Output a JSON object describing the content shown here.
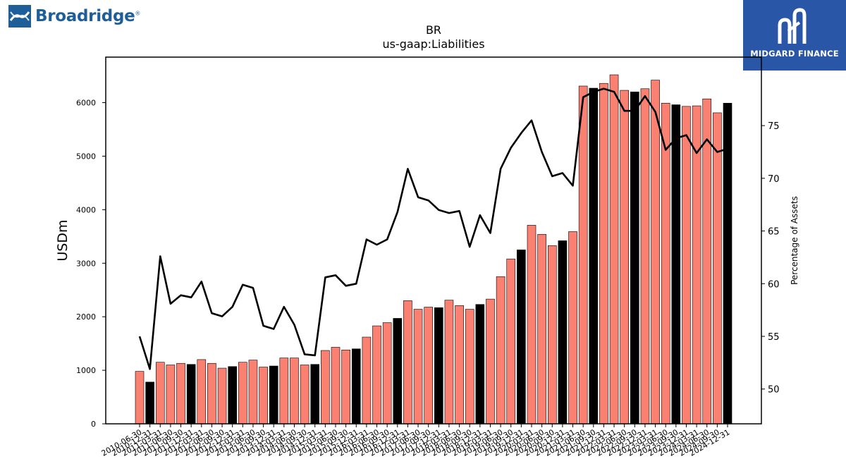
{
  "logos": {
    "left_text": "Broadridge",
    "left_trademark": "®",
    "right_text": "MIDGARD FINANCE"
  },
  "colors": {
    "bar_primary": "#fa8072",
    "bar_secondary": "#000000",
    "line": "#000000",
    "logo_left_blue": "#1f5f99",
    "logo_right_bg": "#2a56a8"
  },
  "chart_data": {
    "type": "bar",
    "title": "BR",
    "subtitle": "us-gaap:Liabilities",
    "ylabel": "USDm",
    "y2label": "Percentage of Assets",
    "ylim": [
      0,
      6850
    ],
    "y2lim": [
      46.7,
      81.5
    ],
    "yticks": [
      0,
      1000,
      2000,
      3000,
      4000,
      5000,
      6000
    ],
    "y2ticks": [
      50,
      55,
      60,
      65,
      70,
      75
    ],
    "grid": false,
    "legend": "none",
    "categories": [
      "2010-06-30",
      "2010-12-31",
      "2011-03-31",
      "2011-06-30",
      "2011-09-30",
      "2011-12-31",
      "2012-03-31",
      "2012-06-30",
      "2012-09-30",
      "2012-12-31",
      "2013-03-31",
      "2013-06-30",
      "2013-09-30",
      "2013-12-31",
      "2014-03-31",
      "2014-06-30",
      "2014-09-30",
      "2014-12-31",
      "2015-03-31",
      "2015-06-30",
      "2015-09-30",
      "2015-12-31",
      "2016-03-31",
      "2016-06-30",
      "2016-09-30",
      "2016-12-31",
      "2017-03-31",
      "2017-06-30",
      "2017-09-30",
      "2017-12-31",
      "2018-03-31",
      "2018-06-30",
      "2018-09-30",
      "2018-12-31",
      "2019-03-31",
      "2019-06-30",
      "2019-09-30",
      "2019-12-31",
      "2020-03-31",
      "2020-06-30",
      "2020-09-30",
      "2020-12-31",
      "2021-03-31",
      "2021-06-30",
      "2021-09-30",
      "2021-12-31",
      "2022-03-31",
      "2022-06-30",
      "2022-09-30",
      "2022-12-31",
      "2023-03-31",
      "2023-06-30",
      "2023-09-30",
      "2023-12-31",
      "2024-03-31",
      "2024-06-30",
      "2024-09-30",
      "2024-12-31"
    ],
    "visible_tick_labels": [
      "2010-06-30",
      "2010-12-31",
      "2011-03-31",
      "2011-06-30",
      "2011-09-30",
      "2011-12-31",
      "2012-03-31",
      "2012-06-30",
      "2012-09-30",
      "2012-12-31",
      "2013-03-31",
      "2013-06-30",
      "2013-09-30",
      "2013-12-31",
      "2014-03-31",
      "2014-06-30",
      "2014-09-30",
      "2014-12-31",
      "2015-03-31",
      "2015-06-30",
      "2015-09-30",
      "2015-12-31",
      "2016-03-31",
      "2016-06-30",
      "2016-09-30",
      "2016-12-31",
      "2017-03-31",
      "2017-06-30",
      "2017-09-30",
      "2017-12-31",
      "2018-03-31",
      "2018-06-30",
      "2018-09-30",
      "2018-12-31",
      "2019-03-31",
      "2019-06-30",
      "2019-09-30",
      "2019-12-31",
      "2020-03-31",
      "2020-06-30",
      "2020-09-30",
      "2020-12-31",
      "2021-03-31",
      "2021-06-30",
      "2021-09-30",
      "2021-12-31",
      "2022-03-31",
      "2022-06-30",
      "2022-09-30",
      "2022-12-31",
      "2023-03-31",
      "2023-06-30",
      "2023-09-30",
      "2023-12-31",
      "2024-03-31",
      "2024-06-30",
      "2024-09-30",
      "2024-12-31"
    ],
    "series": [
      {
        "type": "bar",
        "values": [
          980,
          780,
          1150,
          1100,
          1130,
          1110,
          1200,
          1130,
          1040,
          1070,
          1150,
          1190,
          1060,
          1080,
          1230,
          1230,
          1100,
          1110,
          1370,
          1430,
          1380,
          1400,
          1620,
          1830,
          1890,
          1970,
          2300,
          2140,
          2180,
          2170,
          2310,
          2210,
          2140,
          2230,
          2330,
          2750,
          3080,
          3250,
          3710,
          3540,
          3330,
          3420,
          3590,
          6310,
          6270,
          6360,
          6520,
          6230,
          6200,
          6260,
          6420,
          5990,
          5960,
          5930,
          5940,
          6070,
          5810,
          5990
        ],
        "fiscal_year_end_flags": [
          0,
          1,
          0,
          0,
          0,
          1,
          0,
          0,
          0,
          1,
          0,
          0,
          0,
          1,
          0,
          0,
          0,
          1,
          0,
          0,
          0,
          1,
          0,
          0,
          0,
          1,
          0,
          0,
          0,
          1,
          0,
          0,
          0,
          1,
          0,
          0,
          0,
          1,
          0,
          0,
          0,
          1,
          0,
          0,
          1,
          0,
          0,
          0,
          1,
          0,
          0,
          0,
          1,
          0,
          0,
          0,
          0,
          1
        ]
      },
      {
        "type": "line",
        "axis": "right",
        "values": [
          55.0,
          51.9,
          62.6,
          58.1,
          58.9,
          58.7,
          60.2,
          57.2,
          56.9,
          57.8,
          59.9,
          59.6,
          56.0,
          55.7,
          57.8,
          56.1,
          53.3,
          53.2,
          60.6,
          60.8,
          59.8,
          60.0,
          64.2,
          63.7,
          64.2,
          66.8,
          70.9,
          68.2,
          67.9,
          67.0,
          66.7,
          66.9,
          63.5,
          66.5,
          64.8,
          70.9,
          72.9,
          74.3,
          75.5,
          72.5,
          70.2,
          70.5,
          69.3,
          77.7,
          78.2,
          78.5,
          78.2,
          76.4,
          76.4,
          77.8,
          76.3,
          72.7,
          73.8,
          74.1,
          72.4,
          73.7,
          72.5,
          72.8
        ]
      }
    ]
  }
}
